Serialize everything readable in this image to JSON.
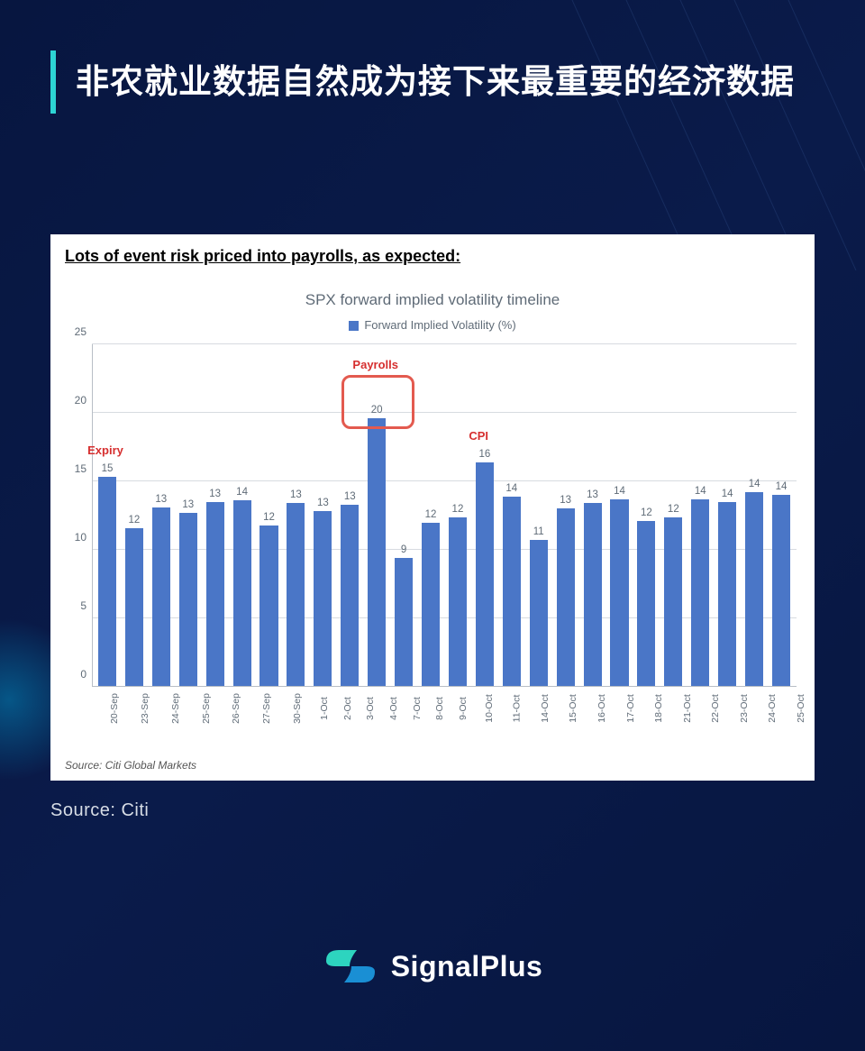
{
  "header": {
    "title": "非农就业数据自然成为接下来最重要的经济数据",
    "accent_color": "#2dd4d4",
    "text_color": "#ffffff"
  },
  "background": {
    "color": "#071640"
  },
  "card": {
    "title": "Lots of event risk priced into payrolls, as expected:",
    "background": "#ffffff",
    "source_note": "Source: Citi Global Markets"
  },
  "chart": {
    "type": "bar",
    "title": "SPX forward implied volatility timeline",
    "legend_label": "Forward Implied Volatility (%)",
    "title_fontsize": 17,
    "title_color": "#5f6b77",
    "legend_fontsize": 13,
    "bar_color": "#4a76c7",
    "grid_color": "#d7dbe0",
    "axis_color": "#b8bec6",
    "label_color": "#5f6b77",
    "label_fontsize": 12,
    "ylim": [
      0,
      25
    ],
    "ytick_step": 5,
    "yticks": [
      0,
      5,
      10,
      15,
      20,
      25
    ],
    "bar_width": 0.67,
    "categories": [
      "20-Sep",
      "23-Sep",
      "24-Sep",
      "25-Sep",
      "26-Sep",
      "27-Sep",
      "30-Sep",
      "1-Oct",
      "2-Oct",
      "3-Oct",
      "4-Oct",
      "7-Oct",
      "8-Oct",
      "9-Oct",
      "10-Oct",
      "11-Oct",
      "14-Oct",
      "15-Oct",
      "16-Oct",
      "17-Oct",
      "18-Oct",
      "21-Oct",
      "22-Oct",
      "23-Oct",
      "24-Oct",
      "25-Oct"
    ],
    "values": [
      15,
      12,
      13,
      13,
      13,
      14,
      12,
      13,
      13,
      13,
      20,
      9,
      12,
      12,
      16,
      14,
      11,
      13,
      13,
      14,
      12,
      12,
      14,
      14,
      14,
      14
    ],
    "bar_heights_precise": [
      15.3,
      11.6,
      13.1,
      12.7,
      13.5,
      13.6,
      11.8,
      13.4,
      12.8,
      13.3,
      19.6,
      9.4,
      12.0,
      12.4,
      16.4,
      13.9,
      10.7,
      13.0,
      13.4,
      13.7,
      12.1,
      12.4,
      13.7,
      13.5,
      14.2,
      14.0
    ],
    "annotations": [
      {
        "text": "Expiry",
        "index": 0,
        "color": "#d62f2f",
        "fontsize": 13,
        "fontweight": 700
      },
      {
        "text": "Payrolls",
        "index": 10,
        "color": "#d62f2f",
        "fontsize": 13,
        "fontweight": 700,
        "boxed": true,
        "box_color": "#e35a4f",
        "box_radius": 10,
        "box_border_width": 3
      },
      {
        "text": "CPI",
        "index": 14,
        "color": "#d62f2f",
        "fontsize": 13,
        "fontweight": 700
      }
    ]
  },
  "source_outer": "Source:  Citi",
  "brand": {
    "name": "SignalPlus",
    "logo_colors": [
      "#2dd4bf",
      "#1a8fd4"
    ],
    "text_color": "#ffffff"
  }
}
